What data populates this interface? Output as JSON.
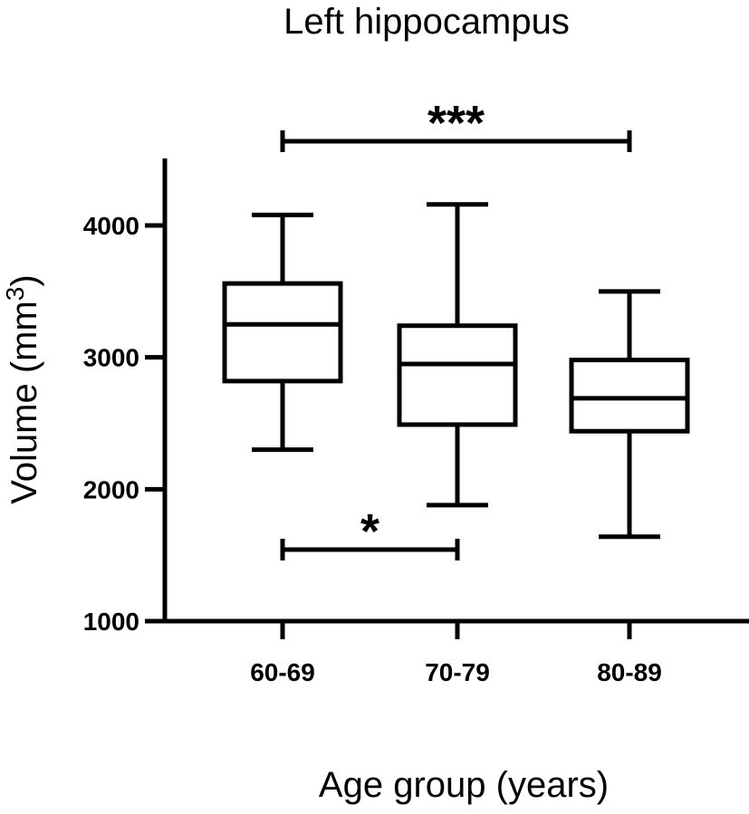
{
  "chart_data": {
    "type": "box",
    "title": "Left hippocampus",
    "xlabel": "Age group (years)",
    "ylabel": "Volume (mm",
    "ylabel_superscript": "3",
    "ylabel_suffix": ")",
    "ylim": [
      1000,
      4500
    ],
    "yticks": [
      "1000",
      "2000",
      "3000",
      "4000"
    ],
    "ytick_values": [
      1000,
      2000,
      3000,
      4000
    ],
    "categories": [
      "60-69",
      "70-79",
      "80-89"
    ],
    "boxes": [
      {
        "category": "60-69",
        "min": 2300,
        "q1": 2820,
        "median": 3250,
        "q3": 3560,
        "max": 4080
      },
      {
        "category": "70-79",
        "min": 1880,
        "q1": 2490,
        "median": 2950,
        "q3": 3240,
        "max": 4160
      },
      {
        "category": "80-89",
        "min": 1640,
        "q1": 2440,
        "median": 2690,
        "q3": 2980,
        "max": 3500
      }
    ],
    "significance": [
      {
        "from": "60-69",
        "to": "80-89",
        "label": "***",
        "position": "above"
      },
      {
        "from": "60-69",
        "to": "70-79",
        "label": "*",
        "position": "below"
      }
    ],
    "grid": false
  }
}
